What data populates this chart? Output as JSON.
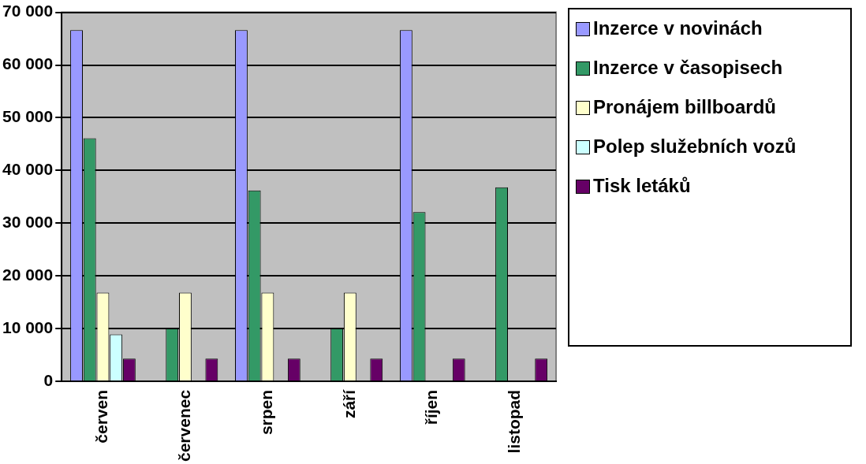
{
  "chart_data": {
    "type": "bar",
    "categories": [
      "červen",
      "červenec",
      "srpen",
      "září",
      "říjen",
      "listopad"
    ],
    "series": [
      {
        "name": "Inzerce v novinách",
        "color": "#9999ff",
        "values": [
          66600,
          null,
          66600,
          null,
          66600,
          null
        ]
      },
      {
        "name": "Inzerce v časopisech",
        "color": "#339966",
        "values": [
          46100,
          10000,
          36200,
          10000,
          32100,
          36800
        ]
      },
      {
        "name": "Pronájem billboardů",
        "color": "#ffffcc",
        "values": [
          16800,
          16800,
          16800,
          16800,
          null,
          null
        ]
      },
      {
        "name": "Polep služebních vozů",
        "color": "#ccffff",
        "values": [
          8900,
          null,
          null,
          null,
          null,
          null
        ]
      },
      {
        "name": "Tisk letáků",
        "color": "#660066",
        "values": [
          4300,
          4300,
          4300,
          4300,
          4300,
          4300
        ]
      }
    ],
    "ylim": [
      0,
      70000
    ],
    "yticks": [
      {
        "value": 0,
        "label": "0"
      },
      {
        "value": 10000,
        "label": "10 000"
      },
      {
        "value": 20000,
        "label": "20 000"
      },
      {
        "value": 30000,
        "label": "30 000"
      },
      {
        "value": 40000,
        "label": "40 000"
      },
      {
        "value": 50000,
        "label": "50 000"
      },
      {
        "value": 60000,
        "label": "60 000"
      },
      {
        "value": 70000,
        "label": "70 000"
      }
    ],
    "grid": "y",
    "legend": "right"
  }
}
